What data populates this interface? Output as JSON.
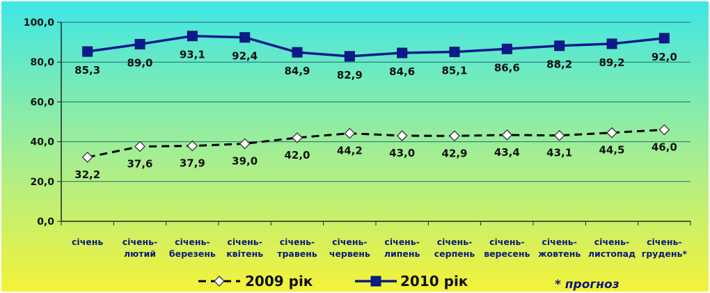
{
  "chart_data": {
    "type": "line",
    "categories": [
      [
        "січень"
      ],
      [
        "січень-",
        "лютий"
      ],
      [
        "січень-",
        "березень"
      ],
      [
        "січень-",
        "квітень"
      ],
      [
        "січень-",
        "травень"
      ],
      [
        "січень-",
        "червень"
      ],
      [
        "січень-",
        "липень"
      ],
      [
        "січень-",
        "серпень"
      ],
      [
        "січень-",
        "вересень"
      ],
      [
        "січень-",
        "жовтень"
      ],
      [
        "січень-",
        "листопад"
      ],
      [
        "січень-",
        "грудень*"
      ]
    ],
    "series": [
      {
        "name": "2009 рік",
        "style": "dashed",
        "marker": "diamond",
        "color": "#000000",
        "values": [
          32.2,
          37.6,
          37.9,
          39.0,
          42.0,
          44.2,
          43.0,
          42.9,
          43.4,
          43.1,
          44.5,
          46.0
        ],
        "labels": [
          "32,2",
          "37,6",
          "37,9",
          "39,0",
          "42,0",
          "44,2",
          "43,0",
          "42,9",
          "43,4",
          "43,1",
          "44,5",
          "46,0"
        ]
      },
      {
        "name": "2010 рік",
        "style": "solid",
        "marker": "square",
        "color": "#0c1a8c",
        "values": [
          85.3,
          89.0,
          93.1,
          92.4,
          84.9,
          82.9,
          84.6,
          85.1,
          86.6,
          88.2,
          89.2,
          92.0
        ],
        "labels": [
          "85,3",
          "89,0",
          "93,1",
          "92,4",
          "84,9",
          "82,9",
          "84,6",
          "85,1",
          "86,6",
          "88,2",
          "89,2",
          "92,0"
        ]
      }
    ],
    "yticks": [
      "0,0",
      "20,0",
      "40,0",
      "60,0",
      "80,0",
      "100,0"
    ],
    "ylim": [
      0,
      100
    ],
    "grid": true,
    "legend_position": "bottom",
    "note": "* прогноз",
    "colors": {
      "background_top": "#3fe6e6",
      "background_bottom": "#f4f23a",
      "grid": "#1d6e6e",
      "category_text": "#0a1a7a"
    }
  }
}
